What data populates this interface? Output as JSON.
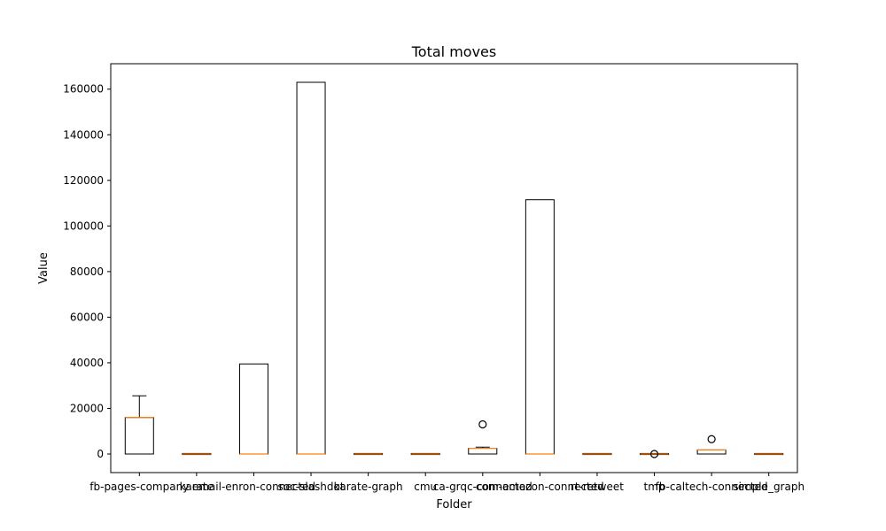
{
  "chart_data": {
    "type": "box",
    "title": "Total moves",
    "xlabel": "Folder",
    "ylabel": "Value",
    "ylim": [
      -8150,
      171150
    ],
    "yticks": [
      0,
      20000,
      40000,
      60000,
      80000,
      100000,
      120000,
      140000,
      160000
    ],
    "ytick_labels": [
      "0",
      "20000",
      "40000",
      "60000",
      "80000",
      "100000",
      "120000",
      "140000",
      "160000"
    ],
    "grid": false,
    "categories": [
      "fb-pages-company",
      "karate",
      "email-enron-connected",
      "soc-slashdot",
      "karate-graph",
      "cmu",
      "ca-grqc-connected",
      "com-amazon-connected",
      "rt-retweet",
      "tmp",
      "fb-caltech-connected",
      "simple_graph"
    ],
    "boxes": [
      {
        "whislo": 0,
        "q1": 0,
        "med": 16000,
        "q3": 16000,
        "whishi": 25500,
        "fliers": []
      },
      {
        "whislo": 0,
        "q1": 0,
        "med": 0,
        "q3": 0,
        "whishi": 0,
        "fliers": []
      },
      {
        "whislo": 0,
        "q1": 0,
        "med": 0,
        "q3": 39500,
        "whishi": 39500,
        "fliers": []
      },
      {
        "whislo": 0,
        "q1": 0,
        "med": 0,
        "q3": 163000,
        "whishi": 163000,
        "fliers": []
      },
      {
        "whislo": 0,
        "q1": 0,
        "med": 0,
        "q3": 0,
        "whishi": 0,
        "fliers": []
      },
      {
        "whislo": 0,
        "q1": 0,
        "med": 0,
        "q3": 0,
        "whishi": 0,
        "fliers": []
      },
      {
        "whislo": 0,
        "q1": 0,
        "med": 2500,
        "q3": 2500,
        "whishi": 3000,
        "fliers": [
          13000
        ]
      },
      {
        "whislo": 0,
        "q1": 0,
        "med": 0,
        "q3": 111500,
        "whishi": 111500,
        "fliers": []
      },
      {
        "whislo": 0,
        "q1": 0,
        "med": 0,
        "q3": 0,
        "whishi": 0,
        "fliers": []
      },
      {
        "whislo": 0,
        "q1": 0,
        "med": 0,
        "q3": 0,
        "whishi": 0,
        "fliers": [
          0
        ]
      },
      {
        "whislo": 0,
        "q1": 0,
        "med": 1800,
        "q3": 1800,
        "whishi": 1800,
        "fliers": [
          6500
        ]
      },
      {
        "whislo": 0,
        "q1": 0,
        "med": 0,
        "q3": 0,
        "whishi": 0,
        "fliers": []
      }
    ],
    "colors": {
      "box": "#000000",
      "median": "#ff7f0e",
      "flier": "#000000",
      "axes": "#000000"
    }
  }
}
